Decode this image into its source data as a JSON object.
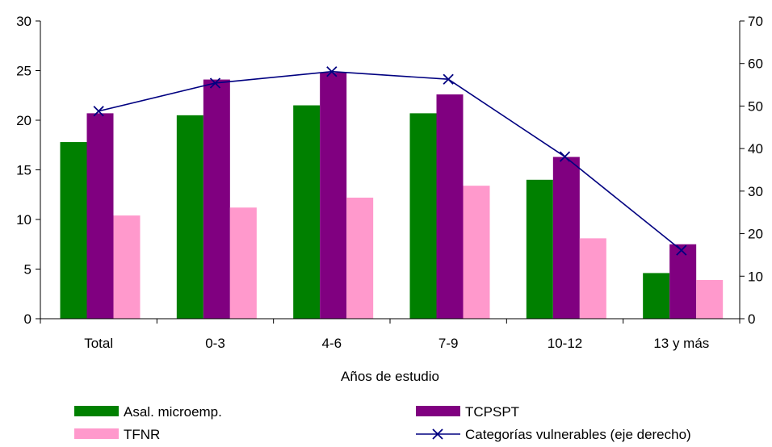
{
  "chart_data": {
    "type": "bar",
    "xlabel": "Años de estudio",
    "categories": [
      "Total",
      "0-3",
      "4-6",
      "7-9",
      "10-12",
      "13 y más"
    ],
    "left_axis": {
      "ylim": [
        0,
        30
      ],
      "ticks": [
        "0",
        "5",
        "10",
        "15",
        "20",
        "25",
        "30"
      ]
    },
    "right_axis": {
      "ylim": [
        0,
        70
      ],
      "ticks": [
        "0",
        "10",
        "20",
        "30",
        "40",
        "50",
        "60",
        "70"
      ]
    },
    "grid": false,
    "legend_placement": "bottom",
    "series": [
      {
        "name": "Asal. microemp.",
        "type": "bar",
        "axis": "left",
        "color": "#008000",
        "values": [
          17.8,
          20.5,
          21.5,
          20.7,
          14.0,
          4.6
        ]
      },
      {
        "name": "TCPSPT",
        "type": "bar",
        "axis": "left",
        "color": "#800080",
        "values": [
          20.7,
          24.1,
          24.8,
          22.6,
          16.3,
          7.5
        ]
      },
      {
        "name": "TFNR",
        "type": "bar",
        "axis": "left",
        "color": "#FF99CC",
        "values": [
          10.4,
          11.2,
          12.2,
          13.4,
          8.1,
          3.9
        ]
      },
      {
        "name": "Categorías vulnerables (eje derecho)",
        "type": "line",
        "axis": "right",
        "color": "#000080",
        "marker": "x",
        "values": [
          48.8,
          55.4,
          58.1,
          56.3,
          38.1,
          16.1
        ]
      }
    ]
  }
}
